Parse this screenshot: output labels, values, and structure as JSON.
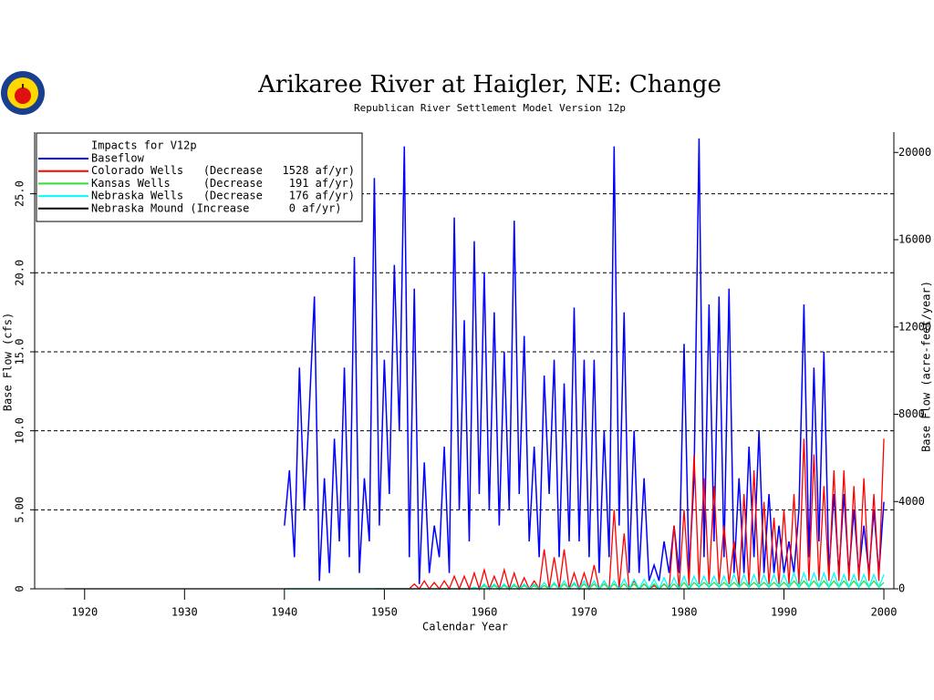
{
  "chart_data": {
    "type": "line",
    "title": "Arikaree River at Haigler, NE: Change",
    "subtitle": "Republican River Settlement Model Version 12p",
    "x_label": "Calendar Year",
    "y_label": "Base Flow (cfs)",
    "y2_label": "Base Flow (acre-feet/year)",
    "legend_title": "Impacts for V12p",
    "legend": "upper left",
    "grid": true,
    "xlim": [
      1915,
      2001
    ],
    "xticks": [
      1920,
      1930,
      1940,
      1950,
      1960,
      1970,
      1980,
      1990,
      2000
    ],
    "ylim": [
      0,
      28.9
    ],
    "yticks": [
      0,
      {
        "value": 5,
        "label": "5.00"
      },
      {
        "value": 10,
        "label": "10.0"
      },
      {
        "value": 15,
        "label": "15.0"
      },
      {
        "value": 20,
        "label": "20.0"
      },
      {
        "value": 25,
        "label": "25.0"
      }
    ],
    "y2lim": [
      0,
      20930
    ],
    "y2ticks": [
      0,
      4000,
      8000,
      12000,
      16000,
      20000
    ],
    "x": [
      1918,
      1940,
      1940.5,
      1941,
      1941.5,
      1942,
      1942.5,
      1943,
      1943.5,
      1944,
      1944.5,
      1945,
      1945.5,
      1946,
      1946.5,
      1947,
      1947.5,
      1948,
      1948.5,
      1949,
      1949.5,
      1950,
      1950.5,
      1951,
      1951.5,
      1952,
      1952.5,
      1953,
      1953.5,
      1954,
      1954.5,
      1955,
      1955.5,
      1956,
      1956.5,
      1957,
      1957.5,
      1958,
      1958.5,
      1959,
      1959.5,
      1960,
      1960.5,
      1961,
      1961.5,
      1962,
      1962.5,
      1963,
      1963.5,
      1964,
      1964.5,
      1965,
      1965.5,
      1966,
      1966.5,
      1967,
      1967.5,
      1968,
      1968.5,
      1969,
      1969.5,
      1970,
      1970.5,
      1971,
      1971.5,
      1972,
      1972.5,
      1973,
      1973.5,
      1974,
      1974.5,
      1975,
      1975.5,
      1976,
      1976.5,
      1977,
      1977.5,
      1978,
      1978.5,
      1979,
      1979.5,
      1980,
      1980.5,
      1981,
      1981.5,
      1982,
      1982.5,
      1983,
      1983.5,
      1984,
      1984.5,
      1985,
      1985.5,
      1986,
      1986.5,
      1987,
      1987.5,
      1988,
      1988.5,
      1989,
      1989.5,
      1990,
      1990.5,
      1991,
      1991.5,
      1992,
      1992.5,
      1993,
      1993.5,
      1994,
      1994.5,
      1995,
      1995.5,
      1996,
      1996.5,
      1997,
      1997.5,
      1998,
      1998.5,
      1999,
      1999.5,
      2000
    ],
    "series": [
      {
        "name": "Baseflow",
        "color": "#0000ff",
        "values": [
          null,
          4,
          7.5,
          2,
          14,
          5,
          11.5,
          18.5,
          0.5,
          7,
          1,
          9.5,
          3,
          14,
          2,
          21,
          1,
          7,
          3,
          26,
          4,
          14.5,
          6,
          20.5,
          10,
          28,
          2,
          19,
          0.3,
          8,
          1,
          4,
          2,
          9,
          1,
          23.5,
          5,
          17,
          3,
          22,
          6,
          20,
          5,
          17.5,
          4,
          15,
          5,
          23.3,
          6,
          16,
          3,
          9,
          2,
          13.5,
          6,
          14.5,
          2,
          13,
          3,
          17.8,
          3,
          14.5,
          2,
          14.5,
          1,
          10,
          2,
          28,
          4,
          17.5,
          1,
          10,
          1,
          7,
          0.5,
          1.5,
          0.5,
          3,
          1,
          4,
          1,
          15.5,
          1,
          7,
          28.5,
          2,
          18,
          3,
          18.5,
          2,
          19,
          1,
          7,
          1,
          9,
          2,
          10,
          1,
          6,
          1,
          4,
          1,
          3,
          1,
          5,
          18,
          2,
          14,
          3,
          15,
          1,
          6,
          1,
          6,
          1,
          5,
          1,
          4,
          1,
          5,
          1,
          5.5
        ]
      },
      {
        "name": "Colorado Wells   (Decrease   1528 af/yr)",
        "color": "#ff0000",
        "values": [
          null,
          null,
          null,
          null,
          null,
          null,
          null,
          null,
          null,
          null,
          null,
          null,
          null,
          null,
          null,
          null,
          null,
          null,
          null,
          0,
          0,
          0,
          0,
          0,
          0,
          0,
          0,
          0.3,
          0,
          0.5,
          0,
          0.4,
          0,
          0.5,
          0,
          0.8,
          0,
          0.8,
          0,
          1,
          0,
          1.2,
          0,
          0.8,
          0,
          1.2,
          0,
          1,
          0,
          0.7,
          0,
          0.5,
          0,
          2.5,
          0,
          2,
          0,
          2.5,
          0,
          1,
          0,
          1,
          0,
          1.5,
          0,
          0.5,
          0,
          5,
          0,
          3.5,
          0,
          0.5,
          0,
          0.3,
          0,
          0.2,
          0,
          0.3,
          0,
          4,
          0,
          5,
          0.2,
          8.5,
          0.3,
          7,
          0.3,
          6.5,
          0.3,
          4,
          0.3,
          3,
          0.2,
          6,
          0.2,
          7.5,
          0.3,
          5.5,
          0.3,
          4.5,
          0.3,
          5,
          0.3,
          6,
          0.3,
          9.5,
          0.5,
          8.5,
          0.5,
          6.5,
          0.5,
          7.5,
          0.5,
          7.5,
          0.5,
          6.5,
          0.5,
          7,
          0.5,
          6,
          0.5,
          9.5
        ]
      },
      {
        "name": "Kansas Wells     (Decrease    191 af/yr)",
        "color": "#33dd33",
        "values": [
          null,
          0,
          0,
          0,
          0,
          0,
          0,
          0,
          0,
          0,
          0,
          0,
          0,
          0,
          0,
          0,
          0,
          0,
          0,
          0,
          0,
          0,
          0,
          0,
          0,
          0,
          0,
          0,
          0,
          0,
          0,
          0,
          0,
          0,
          0,
          0,
          0,
          0,
          0,
          0,
          0,
          0.2,
          0,
          0.2,
          0,
          0.2,
          0,
          0.2,
          0,
          0.2,
          0,
          0.2,
          0,
          0.2,
          0,
          0.3,
          0,
          0.3,
          0,
          0.3,
          0,
          0.3,
          0,
          0.3,
          0,
          0.3,
          0,
          0.3,
          0,
          0.3,
          0,
          0.3,
          0,
          0.3,
          0,
          0.3,
          0,
          0.3,
          0,
          0.3,
          0,
          0.4,
          0,
          0.4,
          0.1,
          0.4,
          0.1,
          0.4,
          0.1,
          0.4,
          0.1,
          0.4,
          0.1,
          0.4,
          0.1,
          0.4,
          0.1,
          0.4,
          0.1,
          0.4,
          0.1,
          0.4,
          0.1,
          0.5,
          0.1,
          0.5,
          0.1,
          0.5,
          0.1,
          0.5,
          0.1,
          0.5,
          0.1,
          0.5,
          0.1,
          0.5,
          0.1,
          0.5,
          0.1,
          0.5,
          0.1,
          0.4
        ]
      },
      {
        "name": "Nebraska Wells   (Decrease    176 af/yr)",
        "color": "#00ffff",
        "values": [
          null,
          0,
          0,
          0,
          0,
          0,
          0,
          0,
          0,
          0,
          0,
          0,
          0,
          0,
          0,
          0,
          0,
          0,
          0,
          0,
          0,
          0,
          0,
          0,
          0,
          0,
          0,
          0,
          0,
          0,
          0,
          0,
          0,
          0,
          0,
          0,
          0,
          0,
          0,
          0.1,
          0,
          0.3,
          0,
          0.3,
          0,
          0.3,
          0,
          0.3,
          0,
          0.3,
          0,
          0.3,
          0,
          0.4,
          0,
          0.4,
          0,
          0.5,
          0,
          0.4,
          0,
          0.5,
          0,
          0.5,
          0,
          0.5,
          0,
          0.5,
          0,
          0.6,
          0,
          0.6,
          0,
          0.6,
          0,
          0.6,
          0,
          0.7,
          0,
          0.7,
          0,
          0.8,
          0,
          0.8,
          0.1,
          0.8,
          0.1,
          0.8,
          0.1,
          0.8,
          0.1,
          0.9,
          0.1,
          0.9,
          0.1,
          0.9,
          0.1,
          0.9,
          0.1,
          0.9,
          0.1,
          0.9,
          0.1,
          1,
          0.1,
          1,
          0.1,
          1,
          0.1,
          1,
          0.1,
          1,
          0.1,
          0.9,
          0.1,
          0.9,
          0.1,
          0.9,
          0.1,
          0.9,
          0.1,
          0.9
        ]
      },
      {
        "name": "Nebraska Mound (Increase      0 af/yr)",
        "color": "#000000",
        "values": [
          0,
          0,
          0,
          0,
          0,
          0,
          0,
          0,
          0,
          0,
          0,
          0,
          0,
          0,
          0,
          0,
          0,
          0,
          0,
          0,
          0,
          0,
          0,
          0,
          0,
          0,
          0,
          0,
          0,
          0,
          0,
          0,
          0,
          0,
          0,
          0,
          0,
          0,
          0,
          0,
          0,
          0,
          0,
          0,
          0,
          0,
          0,
          0,
          0,
          0,
          0,
          0,
          0,
          0,
          0,
          0,
          0,
          0,
          0,
          0,
          0,
          0,
          0,
          0,
          0,
          0,
          0,
          0,
          0,
          0,
          0,
          0,
          0,
          0,
          0,
          0,
          0,
          0,
          0,
          0,
          0,
          0,
          0,
          0,
          0,
          0,
          0,
          0,
          0,
          0,
          0,
          0,
          0,
          0,
          0,
          0,
          0,
          0,
          0,
          0,
          0,
          0,
          0,
          0,
          0,
          0,
          0,
          0,
          0,
          0,
          0,
          0,
          0,
          0,
          0,
          0,
          0,
          0,
          0,
          0,
          0,
          0
        ]
      }
    ]
  }
}
